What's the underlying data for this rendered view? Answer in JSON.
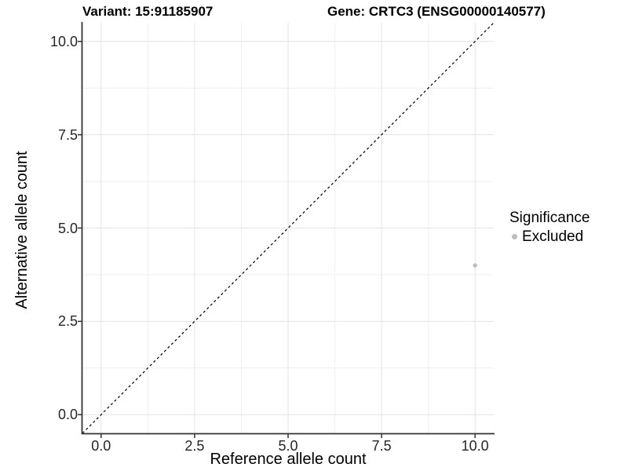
{
  "figure": {
    "title_variant": "Variant: 15:91185907",
    "title_gene": "Gene: CRTC3 (ENSG00000140577)"
  },
  "legend": {
    "title": "Significance",
    "items": [
      {
        "label": "Excluded",
        "color": "#bebebe"
      }
    ]
  },
  "chart_data": {
    "type": "scatter",
    "title": "Variant: 15:91185907",
    "subtitle": "Gene: CRTC3 (ENSG00000140577)",
    "xlabel": "Reference allele count",
    "ylabel": "Alternative allele count",
    "xlim": [
      -0.5,
      10.5
    ],
    "ylim": [
      -0.5,
      10.5
    ],
    "xticks": [
      0,
      2.5,
      5,
      7.5,
      10
    ],
    "yticks": [
      0,
      2.5,
      5,
      7.5,
      10
    ],
    "xtick_labels": [
      "0.0",
      "2.5",
      "5.0",
      "7.5",
      "10.0"
    ],
    "ytick_labels": [
      "0.0",
      "2.5",
      "5.0",
      "7.5",
      "10.0"
    ],
    "grid": "major+minor",
    "legend_position": "right",
    "series": [
      {
        "name": "Excluded",
        "color": "#bebebe",
        "marker": "circle",
        "points": [
          {
            "x": 10,
            "y": 4
          }
        ]
      }
    ],
    "reference_line": {
      "kind": "identity",
      "from": [
        -0.5,
        -0.5
      ],
      "to": [
        10.5,
        10.5
      ],
      "style": "dashed",
      "color": "#000000"
    }
  },
  "colors": {
    "background": "#ffffff",
    "axis_line": "#333333",
    "tick_mark": "#333333",
    "tick_label": "#262626",
    "grid_major": "#e3e3e3",
    "grid_minor": "#efefef"
  }
}
